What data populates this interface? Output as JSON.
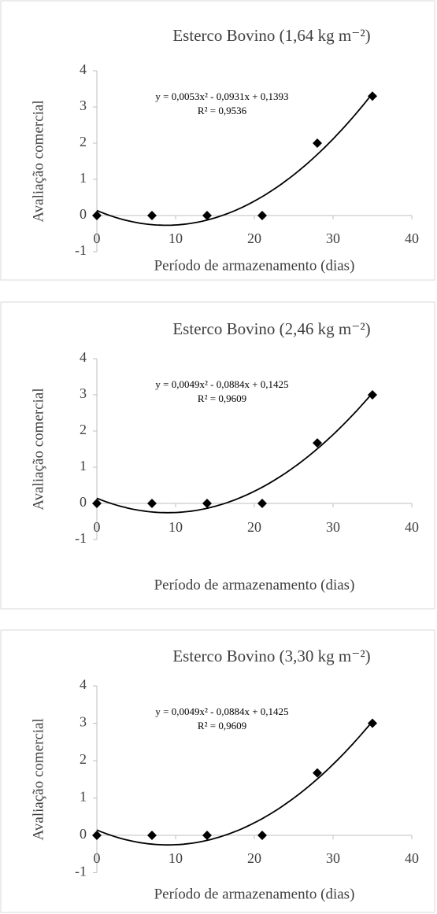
{
  "chart_data": [
    {
      "type": "scatter",
      "title": "Esterco Bovino (1,64 kg m⁻²)",
      "y_label": "Avaliação comercial",
      "x_label": "Período de armazenamento (dias)",
      "x": [
        0,
        7,
        14,
        21,
        28,
        35
      ],
      "values": [
        0,
        0,
        0,
        0,
        2,
        3.3
      ],
      "color": "#000000",
      "xlim": [
        0,
        40
      ],
      "xticks": [
        0,
        10,
        20,
        30,
        40
      ],
      "ylim": [
        -1,
        4
      ],
      "yticks": [
        -1,
        0,
        1,
        2,
        3,
        4
      ],
      "trendline": {
        "coefficients": [
          0.0053,
          -0.0931,
          0.1393
        ],
        "equation": "y = 0,0053x² - 0,0931x + 0,1393",
        "r2": "R² = 0,9536"
      }
    },
    {
      "type": "scatter",
      "title": "Esterco Bovino (2,46 kg m⁻²)",
      "y_label": "Avaliação comercial",
      "x_label": "Período de armazenamento (dias)",
      "x": [
        0,
        7,
        14,
        21,
        28,
        35
      ],
      "values": [
        0,
        0,
        0,
        0,
        1.67,
        3
      ],
      "color": "#000000",
      "xlim": [
        0,
        40
      ],
      "xticks": [
        0,
        10,
        20,
        30,
        40
      ],
      "ylim": [
        -1,
        4
      ],
      "yticks": [
        -1,
        0,
        1,
        2,
        3,
        4
      ],
      "trendline": {
        "coefficients": [
          0.0049,
          -0.0884,
          0.1425
        ],
        "equation": "y = 0,0049x² - 0,0884x + 0,1425",
        "r2": "R² = 0,9609"
      }
    },
    {
      "type": "scatter",
      "title": "Esterco Bovino (3,30 kg m⁻²)",
      "y_label": "Avaliação comercial",
      "x_label": "Período de armazenamento (dias)",
      "x": [
        0,
        7,
        14,
        21,
        28,
        35
      ],
      "values": [
        0,
        0,
        0,
        0,
        1.67,
        3
      ],
      "color": "#000000",
      "xlim": [
        0,
        40
      ],
      "xticks": [
        0,
        10,
        20,
        30,
        40
      ],
      "ylim": [
        -1,
        4
      ],
      "yticks": [
        -1,
        0,
        1,
        2,
        3,
        4
      ],
      "trendline": {
        "coefficients": [
          0.0049,
          -0.0884,
          0.1425
        ],
        "equation": "y = 0,0049x² - 0,0884x + 0,1425",
        "r2": "R² = 0,9609"
      }
    }
  ]
}
